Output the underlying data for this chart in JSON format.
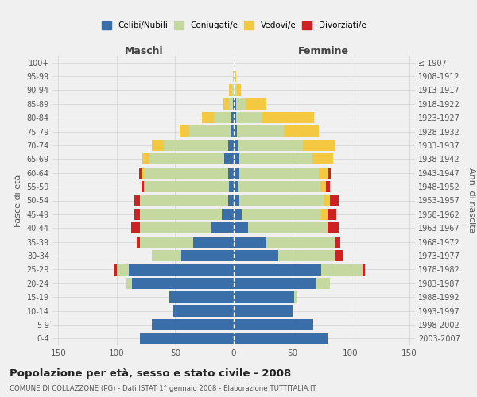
{
  "age_groups": [
    "0-4",
    "5-9",
    "10-14",
    "15-19",
    "20-24",
    "25-29",
    "30-34",
    "35-39",
    "40-44",
    "45-49",
    "50-54",
    "55-59",
    "60-64",
    "65-69",
    "70-74",
    "75-79",
    "80-84",
    "85-89",
    "90-94",
    "95-99",
    "100+"
  ],
  "birth_years": [
    "2003-2007",
    "1998-2002",
    "1993-1997",
    "1988-1992",
    "1983-1987",
    "1978-1982",
    "1973-1977",
    "1968-1972",
    "1963-1967",
    "1958-1962",
    "1953-1957",
    "1948-1952",
    "1943-1947",
    "1938-1942",
    "1933-1937",
    "1928-1932",
    "1923-1927",
    "1918-1922",
    "1913-1917",
    "1908-1912",
    "≤ 1907"
  ],
  "colors": {
    "celibe": "#3a6ea8",
    "coniugato": "#c5d8a0",
    "vedovo": "#f5c842",
    "divorziato": "#cc2222"
  },
  "maschi": {
    "celibe": [
      80,
      70,
      52,
      55,
      87,
      90,
      45,
      35,
      20,
      10,
      5,
      4,
      5,
      8,
      5,
      3,
      2,
      1,
      0,
      0,
      0
    ],
    "coniugato": [
      0,
      0,
      0,
      1,
      5,
      10,
      25,
      45,
      60,
      70,
      75,
      72,
      72,
      65,
      55,
      35,
      15,
      3,
      2,
      0,
      0
    ],
    "vedovo": [
      0,
      0,
      0,
      0,
      0,
      0,
      0,
      0,
      0,
      0,
      0,
      1,
      2,
      5,
      10,
      8,
      10,
      5,
      2,
      1,
      0
    ],
    "divorziato": [
      0,
      0,
      0,
      0,
      0,
      2,
      0,
      3,
      8,
      5,
      5,
      2,
      2,
      0,
      0,
      0,
      0,
      0,
      0,
      0,
      0
    ]
  },
  "femmine": {
    "nubile": [
      80,
      68,
      50,
      52,
      70,
      75,
      38,
      28,
      12,
      7,
      5,
      4,
      5,
      5,
      4,
      3,
      2,
      2,
      0,
      0,
      0
    ],
    "coniugata": [
      0,
      0,
      0,
      2,
      12,
      35,
      48,
      58,
      68,
      68,
      72,
      70,
      68,
      62,
      55,
      40,
      22,
      8,
      3,
      1,
      0
    ],
    "vedova": [
      0,
      0,
      0,
      0,
      0,
      0,
      0,
      0,
      0,
      5,
      5,
      5,
      8,
      18,
      28,
      30,
      45,
      18,
      3,
      1,
      0
    ],
    "divorziata": [
      0,
      0,
      0,
      0,
      0,
      2,
      8,
      5,
      10,
      8,
      8,
      3,
      2,
      0,
      0,
      0,
      0,
      0,
      0,
      0,
      0
    ]
  },
  "xlim": 155,
  "title": "Popolazione per età, sesso e stato civile - 2008",
  "subtitle": "COMUNE DI COLLAZZONE (PG) - Dati ISTAT 1° gennaio 2008 - Elaborazione TUTTITALIA.IT",
  "xlabel_left": "Maschi",
  "xlabel_right": "Femmine",
  "ylabel_left": "Fasce di età",
  "ylabel_right": "Anni di nascita",
  "bg_color": "#f0f0f0",
  "grid_color": "#cccccc",
  "bar_height": 0.82
}
